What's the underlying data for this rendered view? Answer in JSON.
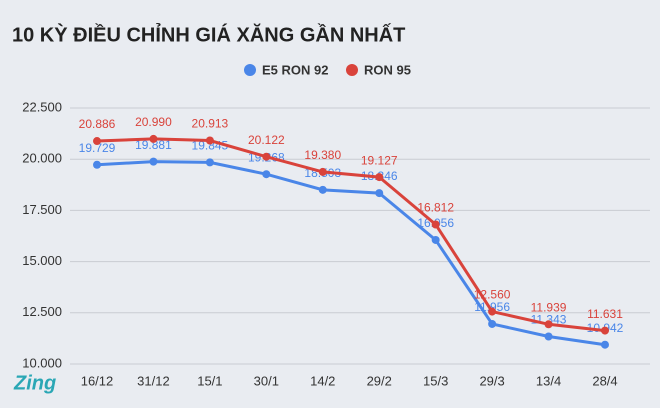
{
  "chart_data": {
    "type": "line",
    "title": "10 KỲ ĐIỀU CHỈNH GIÁ XĂNG GẦN NHẤT",
    "logo": "Zing",
    "categories": [
      "16/12",
      "31/12",
      "15/1",
      "30/1",
      "14/2",
      "29/2",
      "15/3",
      "29/3",
      "13/4",
      "28/4"
    ],
    "series": [
      {
        "name": "E5 RON 92",
        "color": "#4a86e8",
        "values": [
          19729,
          19881,
          19845,
          19268,
          18503,
          18346,
          16056,
          11956,
          11343,
          10942
        ],
        "value_labels": [
          "19.729",
          "19.881",
          "19.845",
          "19.268",
          "18.503",
          "18.346",
          "16.056",
          "11.956",
          "11.343",
          "10.942"
        ]
      },
      {
        "name": "RON 95",
        "color": "#d9433b",
        "values": [
          20886,
          20990,
          20913,
          20122,
          19380,
          19127,
          16812,
          12560,
          11939,
          11631
        ],
        "value_labels": [
          "20.886",
          "20.990",
          "20.913",
          "20.122",
          "19.380",
          "19.127",
          "16.812",
          "12.560",
          "11.939",
          "11.631"
        ]
      }
    ],
    "ylim": [
      10000,
      22500
    ],
    "yticks": [
      {
        "value": 10000,
        "label": "10.000"
      },
      {
        "value": 12500,
        "label": "12.500"
      },
      {
        "value": 15000,
        "label": "15.000"
      },
      {
        "value": 17500,
        "label": "17.500"
      },
      {
        "value": 20000,
        "label": "20.000"
      },
      {
        "value": 22500,
        "label": "22.500"
      }
    ],
    "grid": true,
    "legend": "top"
  }
}
